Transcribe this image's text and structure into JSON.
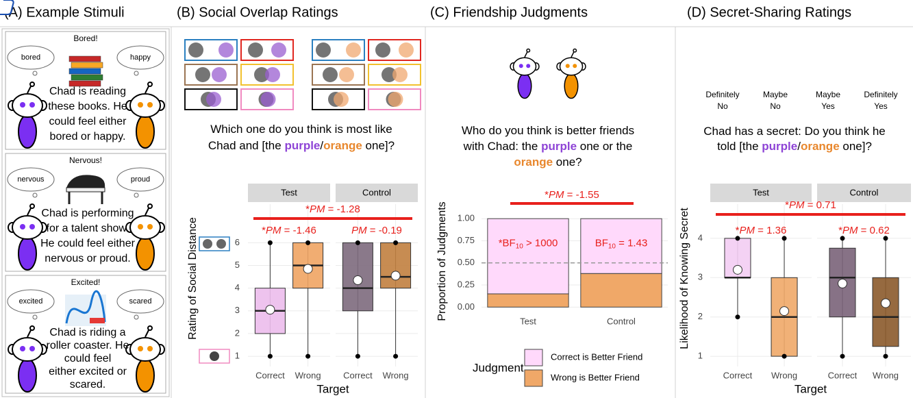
{
  "panel_a": {
    "title": "(A) Example Stimuli",
    "stimuli": [
      {
        "emotion": "Bored!",
        "bubbles": [
          "bored",
          "happy"
        ],
        "lines": [
          "Chad is reading",
          "these books. He",
          "could feel either",
          "bored or happy."
        ]
      },
      {
        "emotion": "Nervous!",
        "bubbles": [
          "nervous",
          "proud"
        ],
        "lines": [
          "Chad is performing",
          "for a talent show.",
          "He could feel either",
          "nervous or proud."
        ]
      },
      {
        "emotion": "Excited!",
        "bubbles": [
          "excited",
          "scared"
        ],
        "lines": [
          "Chad is riding a",
          "roller coaster. He",
          "could feel",
          "either excited or",
          "scared."
        ]
      }
    ]
  },
  "chart_data": [
    {
      "type": "boxplot",
      "title": "(B) Social Overlap Ratings",
      "question": [
        [
          {
            "text": "Which one do you think is most like"
          }
        ],
        [
          {
            "text": "Chad and [the "
          },
          {
            "text": "purple",
            "color": "#8e44d6",
            "bold": true
          },
          {
            "text": "/"
          },
          {
            "text": "orange",
            "color": "#e8872d",
            "bold": true
          },
          {
            "text": " one]?"
          }
        ]
      ],
      "facets": [
        "Test",
        "Control"
      ],
      "categories": [
        "Correct",
        "Wrong"
      ],
      "boxes": [
        [
          {
            "color": "#ecbcec",
            "low": 1,
            "q1": 2,
            "median": 3,
            "q3": 4,
            "high": 6,
            "mean": 3.05
          },
          {
            "color": "#efa463",
            "low": 1,
            "q1": 4,
            "median": 5,
            "q3": 6,
            "high": 6,
            "mean": 4.85
          }
        ],
        [
          {
            "color": "#7d6a7d",
            "low": 1,
            "q1": 3,
            "median": 4,
            "q3": 6,
            "high": 6,
            "mean": 4.35
          },
          {
            "color": "#c1803f",
            "low": 1,
            "q1": 4,
            "median": 4.5,
            "q3": 6,
            "high": 6,
            "mean": 4.55
          }
        ]
      ],
      "ylabel": "Rating of Social Distance",
      "xlabel": "Target",
      "ylim": [
        0.55,
        7.7
      ],
      "yticks": [
        1,
        2,
        3,
        4,
        5,
        6
      ],
      "grid": true,
      "overall": {
        "prefix": "*",
        "em": "PM",
        "rest": " = -1.28"
      },
      "facet_stats": [
        {
          "prefix": "*",
          "em": "PM",
          "rest": " = -1.46"
        },
        {
          "em": "PM",
          "rest": " = -0.19"
        }
      ],
      "annotation_color": "#e8201c"
    },
    {
      "type": "stacked_bar",
      "question": [
        [
          {
            "text": "Who do you think is better friends"
          }
        ],
        [
          {
            "text": "with Chad: the "
          },
          {
            "text": "purple",
            "color": "#8e44d6",
            "bold": true
          },
          {
            "text": " one or the"
          }
        ],
        [
          {
            "text": "orange",
            "color": "#e8872d",
            "bold": true
          },
          {
            "text": " one?"
          }
        ]
      ],
      "title": "(C) Friendship Judgments",
      "categories": [
        "Test",
        "Control"
      ],
      "series": [
        {
          "name": "Wrong is Better Friend",
          "color": "#f0a868",
          "values": [
            0.15,
            0.38
          ]
        },
        {
          "name": "Correct is Better Friend",
          "color": "#ffd9fb",
          "values": [
            0.85,
            0.62
          ]
        }
      ],
      "ylabel": "Proportion of Judgments",
      "ylim": [
        -0.075,
        1.11
      ],
      "yticks": [
        {
          "value": 0,
          "label": "0.00"
        },
        {
          "value": 0.25,
          "label": "0.25"
        },
        {
          "value": 0.5,
          "label": "0.50"
        },
        {
          "value": 0.75,
          "label": "0.75"
        },
        {
          "value": 1,
          "label": "1.00"
        }
      ],
      "grid": true,
      "hline": 0.5,
      "legend_title": "Judgment",
      "bar_stats": [
        {
          "prefix": "*",
          "main": "BF",
          "sub": "10",
          "rest": " > 1000"
        },
        {
          "main": "BF",
          "sub": "10",
          "rest": " = 1.43"
        }
      ],
      "overall": {
        "prefix": "*",
        "em": "PM",
        "rest": " = -1.55"
      },
      "annotation_color": "#e8201c"
    },
    {
      "type": "boxplot",
      "title": "(D) Secret-Sharing Ratings",
      "ratings": [
        [
          "Definitely",
          "No"
        ],
        [
          "Maybe",
          "No"
        ],
        [
          "Maybe",
          "Yes"
        ],
        [
          "Definitely",
          "Yes"
        ]
      ],
      "question": [
        [
          {
            "text": "Chad has a secret: Do you think he"
          }
        ],
        [
          {
            "text": "told [the "
          },
          {
            "text": "purple",
            "color": "#8e44d6",
            "bold": true
          },
          {
            "text": "/"
          },
          {
            "text": "orange",
            "color": "#e8872d",
            "bold": true
          },
          {
            "text": " one]?"
          }
        ]
      ],
      "facets": [
        "Test",
        "Control"
      ],
      "categories": [
        "Correct",
        "Wrong"
      ],
      "boxes": [
        [
          {
            "color": "#f3cdf3",
            "low": 2,
            "q1": 3,
            "median": 3,
            "q3": 4,
            "high": 4,
            "mean": 3.2
          },
          {
            "color": "#f0a868",
            "low": 1,
            "q1": 1,
            "median": 2,
            "q3": 3,
            "high": 4,
            "mean": 2.15
          }
        ],
        [
          {
            "color": "#7a6379",
            "low": 1,
            "q1": 2,
            "median": 3,
            "q3": 3.75,
            "high": 4,
            "mean": 2.85
          },
          {
            "color": "#8b5a2b",
            "low": 1,
            "q1": 1.25,
            "median": 2,
            "q3": 3,
            "high": 4,
            "mean": 2.35
          }
        ]
      ],
      "ylabel": "Likelihood of Knowing Secret",
      "xlabel": "Target",
      "ylim": [
        0.74,
        4.87
      ],
      "yticks": [
        1,
        2,
        3,
        4
      ],
      "grid": true,
      "overall": {
        "prefix": "*",
        "em": "PM",
        "rest": " = 0.71"
      },
      "facet_stats": [
        {
          "prefix": "*",
          "em": "PM",
          "rest": " = 1.36"
        },
        {
          "prefix": "*",
          "em": "PM",
          "rest": " = 0.62"
        }
      ],
      "annotation_color": "#e8201c"
    }
  ]
}
